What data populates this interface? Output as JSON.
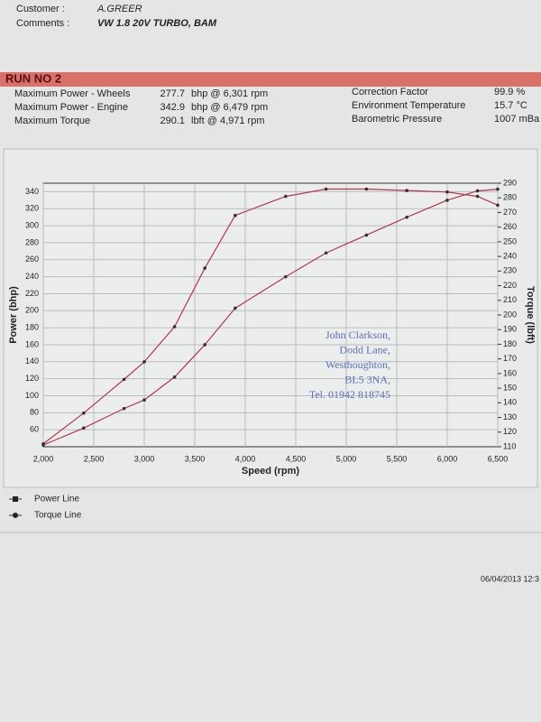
{
  "header": {
    "customer_label": "Customer :",
    "customer": "A.GREER",
    "comments_label": "Comments :",
    "comments": "VW 1.8 20V TURBO, BAM"
  },
  "run": {
    "title": "RUN NO 2",
    "left_rows": [
      [
        "Maximum Power - Wheels",
        "277.7",
        "bhp @ 6,301 rpm"
      ],
      [
        "Maximum Power - Engine",
        "342.9",
        "bhp @ 6,479 rpm"
      ],
      [
        "Maximum Torque",
        "290.1",
        "lbft @ 4,971 rpm"
      ]
    ],
    "right_rows": [
      [
        "Correction Factor",
        "99.9 %"
      ],
      [
        "Environment Temperature",
        "15.7 °C"
      ],
      [
        "Barometric Pressure",
        "1007 mBa"
      ]
    ]
  },
  "stamp": {
    "lines": [
      "John Clarkson,",
      "Dodd Lane,",
      "Westhoughton,",
      "BL5 3NA,",
      "Tel. 01942 818745"
    ]
  },
  "footer": {
    "date": "06/04/2013 12:3"
  },
  "chart_data": {
    "type": "line",
    "xlabel": "Speed (rpm)",
    "ylabel": "Power (bhp)",
    "y2label": "Torque (lbft)",
    "x": [
      2000,
      2400,
      2800,
      3000,
      3300,
      3600,
      3900,
      4400,
      4800,
      5200,
      5600,
      6000,
      6300,
      6500
    ],
    "series": [
      {
        "name": "Power Line",
        "color": "#b3364e",
        "values": [
          42,
          62,
          85,
          95,
          122,
          160,
          203,
          240,
          268,
          289,
          310,
          330,
          341,
          343
        ]
      },
      {
        "name": "Torque Line",
        "color": "#b3364e",
        "axis": "y2",
        "values": [
          112,
          133,
          156,
          168,
          192,
          232,
          268,
          281,
          286,
          286,
          285,
          284,
          281,
          275
        ]
      }
    ],
    "xlim": [
      2000,
      6500
    ],
    "xticks": [
      {
        "value": 2000,
        "label": "2,000"
      },
      {
        "value": 2500,
        "label": "2,500"
      },
      {
        "value": 3000,
        "label": "3,000"
      },
      {
        "value": 3500,
        "label": "3,500"
      },
      {
        "value": 4000,
        "label": "4,000"
      },
      {
        "value": 4500,
        "label": "4,500"
      },
      {
        "value": 5000,
        "label": "5,000"
      },
      {
        "value": 5500,
        "label": "5,500"
      },
      {
        "value": 6000,
        "label": "6,000"
      },
      {
        "value": 6500,
        "label": "6,500"
      }
    ],
    "ylim": [
      40,
      350
    ],
    "yticks": [
      60,
      80,
      100,
      120,
      140,
      160,
      180,
      200,
      220,
      240,
      260,
      280,
      300,
      320,
      340
    ],
    "y2lim": [
      110,
      290
    ],
    "y2ticks": [
      110,
      120,
      130,
      140,
      150,
      160,
      170,
      180,
      190,
      200,
      210,
      220,
      230,
      240,
      250,
      260,
      270,
      280,
      290
    ],
    "grid": true
  }
}
